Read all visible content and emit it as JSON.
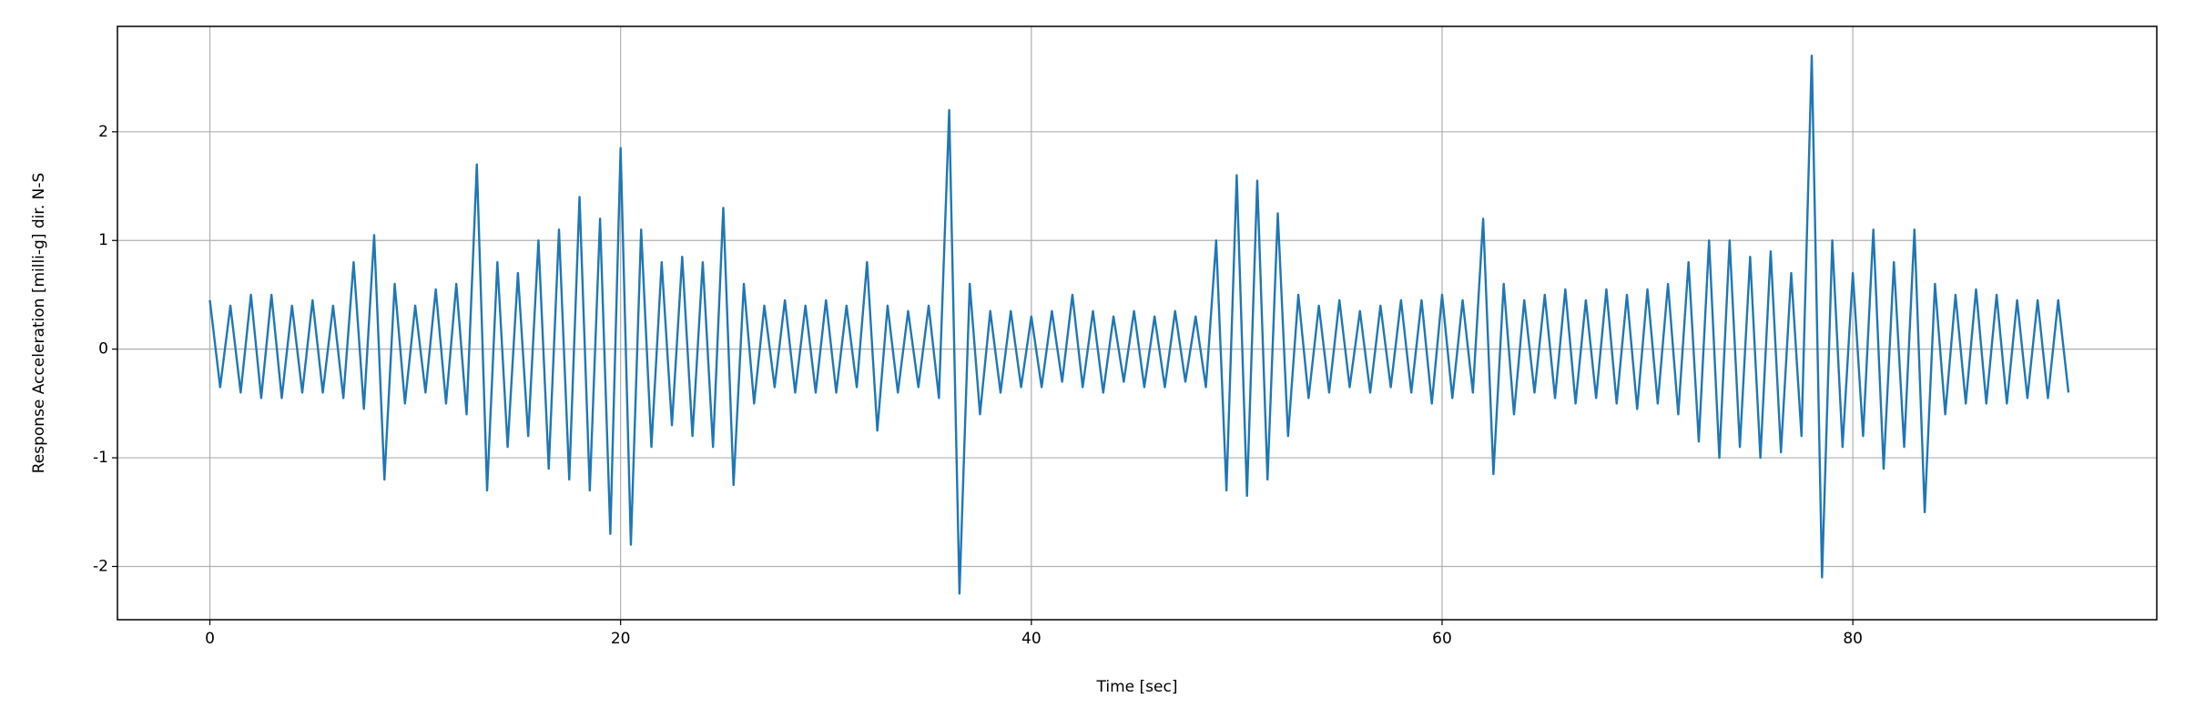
{
  "chart_data": {
    "type": "line",
    "xlabel": "Time [sec]",
    "ylabel": "Response Acceleration [milli-g] dir. N-S",
    "xlim": [
      -4.5,
      94.8
    ],
    "ylim": [
      -2.49,
      2.97
    ],
    "xticks": [
      0,
      20,
      40,
      60,
      80
    ],
    "yticks": [
      -2,
      -1,
      0,
      1,
      2
    ],
    "grid": true,
    "x": [
      0,
      0.5,
      1,
      1.5,
      2,
      2.5,
      3,
      3.5,
      4,
      4.5,
      5,
      5.5,
      6,
      6.5,
      7,
      7.5,
      8,
      8.5,
      9,
      9.5,
      10,
      10.5,
      11,
      11.5,
      12,
      12.5,
      13,
      13.5,
      14,
      14.5,
      15,
      15.5,
      16,
      16.5,
      17,
      17.5,
      18,
      18.5,
      19,
      19.5,
      20,
      20.5,
      21,
      21.5,
      22,
      22.5,
      23,
      23.5,
      24,
      24.5,
      25,
      25.5,
      26,
      26.5,
      27,
      27.5,
      28,
      28.5,
      29,
      29.5,
      30,
      30.5,
      31,
      31.5,
      32,
      32.5,
      33,
      33.5,
      34,
      34.5,
      35,
      35.5,
      36,
      36.5,
      37,
      37.5,
      38,
      38.5,
      39,
      39.5,
      40,
      40.5,
      41,
      41.5,
      42,
      42.5,
      43,
      43.5,
      44,
      44.5,
      45,
      45.5,
      46,
      46.5,
      47,
      47.5,
      48,
      48.5,
      49,
      49.5,
      50,
      50.5,
      51,
      51.5,
      52,
      52.5,
      53,
      53.5,
      54,
      54.5,
      55,
      55.5,
      56,
      56.5,
      57,
      57.5,
      58,
      58.5,
      59,
      59.5,
      60,
      60.5,
      61,
      61.5,
      62,
      62.5,
      63,
      63.5,
      64,
      64.5,
      65,
      65.5,
      66,
      66.5,
      67,
      67.5,
      68,
      68.5,
      69,
      69.5,
      70,
      70.5,
      71,
      71.5,
      72,
      72.5,
      73,
      73.5,
      74,
      74.5,
      75,
      75.5,
      76,
      76.5,
      77,
      77.5,
      78,
      78.5,
      79,
      79.5,
      80,
      80.5,
      81,
      81.5,
      82,
      82.5,
      83,
      83.5,
      84,
      84.5,
      85,
      85.5,
      86,
      86.5,
      87,
      87.5,
      88,
      88.5,
      89,
      89.5,
      90,
      90.5
    ],
    "series": [
      {
        "color": "#1f77b4",
        "values": [
          0.45,
          -0.35,
          0.4,
          -0.4,
          0.5,
          -0.45,
          0.5,
          -0.45,
          0.4,
          -0.4,
          0.45,
          -0.4,
          0.4,
          -0.45,
          0.8,
          -0.55,
          1.05,
          -1.2,
          0.6,
          -0.5,
          0.4,
          -0.4,
          0.55,
          -0.5,
          0.6,
          -0.6,
          1.7,
          -1.3,
          0.8,
          -0.9,
          0.7,
          -0.8,
          1.0,
          -1.1,
          1.1,
          -1.2,
          1.4,
          -1.3,
          1.2,
          -1.7,
          1.85,
          -1.8,
          1.1,
          -0.9,
          0.8,
          -0.7,
          0.85,
          -0.8,
          0.8,
          -0.9,
          1.3,
          -1.25,
          0.6,
          -0.5,
          0.4,
          -0.35,
          0.45,
          -0.4,
          0.4,
          -0.4,
          0.45,
          -0.4,
          0.4,
          -0.35,
          0.8,
          -0.75,
          0.4,
          -0.4,
          0.35,
          -0.35,
          0.4,
          -0.45,
          2.2,
          -2.25,
          0.6,
          -0.6,
          0.35,
          -0.4,
          0.35,
          -0.35,
          0.3,
          -0.35,
          0.35,
          -0.3,
          0.5,
          -0.35,
          0.35,
          -0.4,
          0.3,
          -0.3,
          0.35,
          -0.35,
          0.3,
          -0.35,
          0.35,
          -0.3,
          0.3,
          -0.35,
          1.0,
          -1.3,
          1.6,
          -1.35,
          1.55,
          -1.2,
          1.25,
          -0.8,
          0.5,
          -0.45,
          0.4,
          -0.4,
          0.45,
          -0.35,
          0.35,
          -0.4,
          0.4,
          -0.35,
          0.45,
          -0.4,
          0.45,
          -0.5,
          0.5,
          -0.45,
          0.45,
          -0.4,
          1.2,
          -1.15,
          0.6,
          -0.6,
          0.45,
          -0.4,
          0.5,
          -0.45,
          0.55,
          -0.5,
          0.45,
          -0.45,
          0.55,
          -0.5,
          0.5,
          -0.55,
          0.55,
          -0.5,
          0.6,
          -0.6,
          0.8,
          -0.85,
          1.0,
          -1.0,
          1.0,
          -0.9,
          0.85,
          -1.0,
          0.9,
          -0.95,
          0.7,
          -0.8,
          2.7,
          -2.1,
          1.0,
          -0.9,
          0.7,
          -0.8,
          1.1,
          -1.1,
          0.8,
          -0.9,
          1.1,
          -1.5,
          0.6,
          -0.6,
          0.5,
          -0.5,
          0.55,
          -0.5,
          0.5,
          -0.5,
          0.45,
          -0.45,
          0.45,
          -0.45,
          0.45,
          -0.4
        ]
      }
    ]
  }
}
